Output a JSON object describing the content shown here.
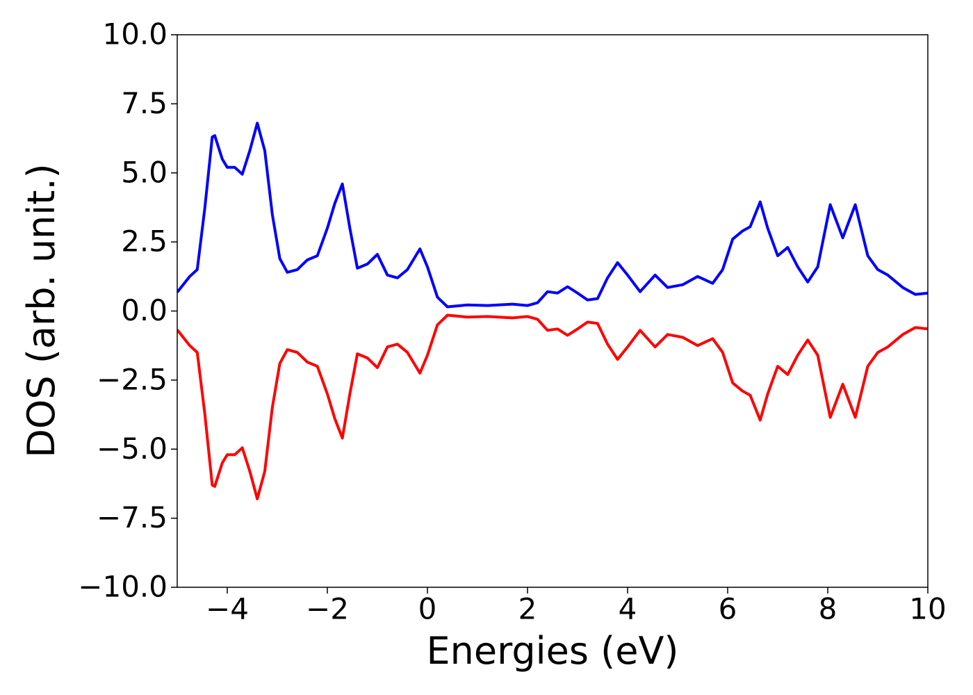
{
  "chart_data": {
    "type": "line",
    "xlabel": "Energies (eV)",
    "ylabel": "DOS (arb. unit.)",
    "x": [
      -5.0,
      -4.75,
      -4.6,
      -4.45,
      -4.3,
      -4.25,
      -4.1,
      -4.0,
      -3.85,
      -3.7,
      -3.55,
      -3.4,
      -3.25,
      -3.1,
      -2.95,
      -2.8,
      -2.6,
      -2.4,
      -2.2,
      -2.0,
      -1.85,
      -1.7,
      -1.55,
      -1.4,
      -1.2,
      -1.0,
      -0.8,
      -0.6,
      -0.4,
      -0.15,
      0.0,
      0.2,
      0.4,
      0.8,
      1.2,
      1.7,
      2.0,
      2.2,
      2.4,
      2.6,
      2.8,
      3.0,
      3.2,
      3.4,
      3.6,
      3.8,
      4.0,
      4.25,
      4.55,
      4.8,
      5.1,
      5.4,
      5.7,
      5.9,
      6.1,
      6.3,
      6.45,
      6.65,
      6.8,
      7.0,
      7.2,
      7.4,
      7.6,
      7.8,
      8.05,
      8.3,
      8.55,
      8.8,
      9.0,
      9.2,
      9.5,
      9.75,
      10.0
    ],
    "series": [
      {
        "color": "#0000ff",
        "values": [
          0.68,
          1.25,
          1.5,
          3.7,
          6.3,
          6.35,
          5.5,
          5.2,
          5.2,
          4.95,
          5.8,
          6.8,
          5.8,
          3.5,
          1.9,
          1.4,
          1.5,
          1.85,
          2.0,
          3.0,
          3.9,
          4.6,
          3.0,
          1.55,
          1.7,
          2.05,
          1.3,
          1.2,
          1.5,
          2.25,
          1.6,
          0.5,
          0.15,
          0.22,
          0.2,
          0.25,
          0.2,
          0.3,
          0.7,
          0.65,
          0.88,
          0.65,
          0.4,
          0.45,
          1.2,
          1.75,
          1.3,
          0.7,
          1.3,
          0.85,
          0.95,
          1.25,
          1.0,
          1.5,
          2.6,
          2.9,
          3.05,
          3.95,
          3.0,
          2.0,
          2.3,
          1.6,
          1.05,
          1.6,
          3.85,
          2.65,
          3.85,
          2.0,
          1.5,
          1.3,
          0.85,
          0.6,
          0.65
        ]
      },
      {
        "color": "#ff0000",
        "values": [
          -0.68,
          -1.25,
          -1.5,
          -3.7,
          -6.3,
          -6.35,
          -5.5,
          -5.2,
          -5.2,
          -4.95,
          -5.8,
          -6.8,
          -5.8,
          -3.5,
          -1.9,
          -1.4,
          -1.5,
          -1.85,
          -2.0,
          -3.0,
          -3.9,
          -4.6,
          -3.0,
          -1.55,
          -1.7,
          -2.05,
          -1.3,
          -1.2,
          -1.5,
          -2.25,
          -1.6,
          -0.5,
          -0.15,
          -0.22,
          -0.2,
          -0.25,
          -0.2,
          -0.3,
          -0.7,
          -0.65,
          -0.88,
          -0.65,
          -0.4,
          -0.45,
          -1.2,
          -1.75,
          -1.3,
          -0.7,
          -1.3,
          -0.85,
          -0.95,
          -1.25,
          -1.0,
          -1.5,
          -2.6,
          -2.9,
          -3.05,
          -3.95,
          -3.0,
          -2.0,
          -2.3,
          -1.6,
          -1.05,
          -1.6,
          -3.85,
          -2.65,
          -3.85,
          -2.0,
          -1.5,
          -1.3,
          -0.85,
          -0.6,
          -0.65
        ]
      }
    ],
    "xlim": [
      -5,
      10
    ],
    "xticks": [
      {
        "value": -4,
        "label": "−4"
      },
      {
        "value": -2,
        "label": "−2"
      },
      0,
      2,
      4,
      6,
      8,
      10
    ],
    "ylim": [
      -10,
      10
    ],
    "yticks": [
      {
        "value": -10,
        "label": "−10.0"
      },
      {
        "value": -7.5,
        "label": "−7.5"
      },
      {
        "value": -5,
        "label": "−5.0"
      },
      {
        "value": -2.5,
        "label": "−2.5"
      },
      {
        "value": 0,
        "label": "0.0"
      },
      2.5,
      {
        "value": 5,
        "label": "5.0"
      },
      7.5,
      {
        "value": 10,
        "label": "10.0"
      }
    ],
    "grid": false
  }
}
